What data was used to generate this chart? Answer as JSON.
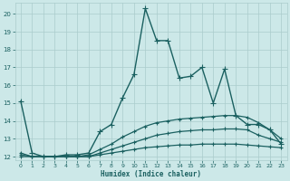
{
  "xlabel": "Humidex (Indice chaleur)",
  "bg_color": "#cce8e8",
  "grid_color": "#aacccc",
  "line_color": "#1a6060",
  "xlim": [
    -0.5,
    23.5
  ],
  "ylim": [
    11.8,
    20.6
  ],
  "yticks": [
    12,
    13,
    14,
    15,
    16,
    17,
    18,
    19,
    20
  ],
  "xticks": [
    0,
    1,
    2,
    3,
    4,
    5,
    6,
    7,
    8,
    9,
    10,
    11,
    12,
    13,
    14,
    15,
    16,
    17,
    18,
    19,
    20,
    21,
    22,
    23
  ],
  "series": [
    {
      "x": [
        0,
        1,
        2,
        3,
        4,
        5,
        6,
        7,
        8,
        9,
        10,
        11,
        12,
        13,
        14,
        15,
        16,
        17,
        18,
        19,
        20,
        21,
        22,
        23
      ],
      "y": [
        15.1,
        12.2,
        12.0,
        12.0,
        12.1,
        12.1,
        12.2,
        13.4,
        13.8,
        15.3,
        16.6,
        20.3,
        18.5,
        18.5,
        16.4,
        16.5,
        17.0,
        15.0,
        16.9,
        14.3,
        13.8,
        13.8,
        13.5,
        12.7
      ],
      "marker": "+",
      "ms": 4,
      "lw": 1.0
    },
    {
      "x": [
        0,
        1,
        2,
        3,
        4,
        5,
        6,
        7,
        8,
        9,
        10,
        11,
        12,
        13,
        14,
        15,
        16,
        17,
        18,
        19,
        20,
        21,
        22,
        23
      ],
      "y": [
        12.2,
        12.0,
        12.0,
        12.0,
        12.0,
        12.0,
        12.1,
        12.4,
        12.7,
        13.1,
        13.4,
        13.7,
        13.9,
        14.0,
        14.1,
        14.15,
        14.2,
        14.25,
        14.3,
        14.3,
        14.2,
        13.9,
        13.5,
        13.0
      ],
      "marker": "+",
      "ms": 3,
      "lw": 0.9
    },
    {
      "x": [
        0,
        1,
        2,
        3,
        4,
        5,
        6,
        7,
        8,
        9,
        10,
        11,
        12,
        13,
        14,
        15,
        16,
        17,
        18,
        19,
        20,
        21,
        22,
        23
      ],
      "y": [
        12.1,
        12.0,
        12.0,
        12.0,
        12.0,
        12.0,
        12.0,
        12.2,
        12.4,
        12.6,
        12.8,
        13.0,
        13.2,
        13.3,
        13.4,
        13.45,
        13.5,
        13.5,
        13.55,
        13.55,
        13.5,
        13.2,
        13.0,
        12.8
      ],
      "marker": "+",
      "ms": 3,
      "lw": 0.9
    },
    {
      "x": [
        0,
        1,
        2,
        3,
        4,
        5,
        6,
        7,
        8,
        9,
        10,
        11,
        12,
        13,
        14,
        15,
        16,
        17,
        18,
        19,
        20,
        21,
        22,
        23
      ],
      "y": [
        12.0,
        12.0,
        12.0,
        12.0,
        12.0,
        12.0,
        12.0,
        12.1,
        12.2,
        12.3,
        12.4,
        12.5,
        12.55,
        12.6,
        12.65,
        12.65,
        12.7,
        12.7,
        12.7,
        12.7,
        12.65,
        12.6,
        12.55,
        12.5
      ],
      "marker": "+",
      "ms": 3,
      "lw": 0.9
    }
  ]
}
